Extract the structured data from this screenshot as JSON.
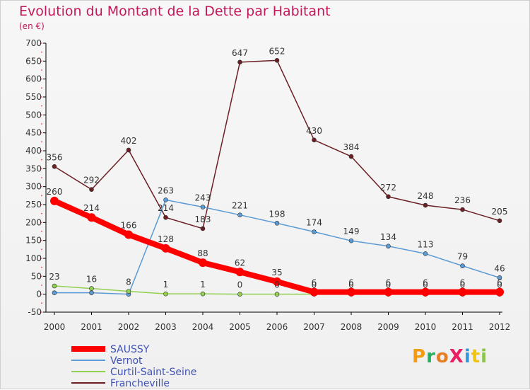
{
  "title": "Evolution du Montant de la Dette par Habitant",
  "subtitle": "(en €)",
  "logo_text": "ProXiti",
  "chart_data": {
    "type": "line",
    "title": "Evolution du Montant de la Dette par Habitant",
    "subtitle": "(en €)",
    "xlabel": "",
    "ylabel": "",
    "ylim": [
      -50,
      700
    ],
    "yticks": [
      -50,
      0,
      50,
      100,
      150,
      200,
      250,
      300,
      350,
      400,
      450,
      500,
      550,
      600,
      650,
      700
    ],
    "categories": [
      "2000",
      "2001",
      "2002",
      "2003",
      "2004",
      "2005",
      "2006",
      "2007",
      "2008",
      "2009",
      "2010",
      "2011",
      "2012"
    ],
    "grid": false,
    "legend_position": "bottom-left",
    "series": [
      {
        "name": "Francheville",
        "color": "#6b1f24",
        "values": [
          356,
          292,
          402,
          214,
          183,
          647,
          652,
          430,
          384,
          272,
          248,
          236,
          205
        ],
        "labels": [
          "356",
          "292",
          "402",
          "214",
          "183",
          "647",
          "652",
          "430",
          "384",
          "272",
          "248",
          "236",
          "205"
        ]
      },
      {
        "name": "Vernot",
        "color": "#5b9bd5",
        "values": [
          4,
          4,
          0,
          263,
          243,
          221,
          198,
          174,
          149,
          134,
          113,
          79,
          46
        ],
        "labels": [
          "",
          "",
          "",
          "263",
          "243",
          "221",
          "198",
          "174",
          "149",
          "134",
          "113",
          "79",
          "46"
        ]
      },
      {
        "name": "Curtil-Saint-Seine",
        "color": "#92d050",
        "values": [
          23,
          16,
          8,
          1,
          1,
          0,
          0,
          0,
          0,
          0,
          0,
          0,
          0
        ],
        "labels": [
          "23",
          "16",
          "8",
          "1",
          "1",
          "0",
          "0",
          "0",
          "0",
          "0",
          "0",
          "0",
          "0"
        ]
      },
      {
        "name": "SAUSSY",
        "color": "#ff0000",
        "values": [
          260,
          214,
          166,
          128,
          88,
          62,
          35,
          6,
          6,
          6,
          6,
          6,
          6
        ],
        "labels": [
          "260",
          "214",
          "166",
          "128",
          "88",
          "62",
          "35",
          "6",
          "6",
          "6",
          "6",
          "6",
          "6"
        ]
      }
    ],
    "legend": [
      {
        "name": "SAUSSY",
        "color": "#ff0000"
      },
      {
        "name": "Vernot",
        "color": "#5b9bd5"
      },
      {
        "name": "Curtil-Saint-Seine",
        "color": "#92d050"
      },
      {
        "name": "Francheville",
        "color": "#6b1f24"
      }
    ]
  }
}
